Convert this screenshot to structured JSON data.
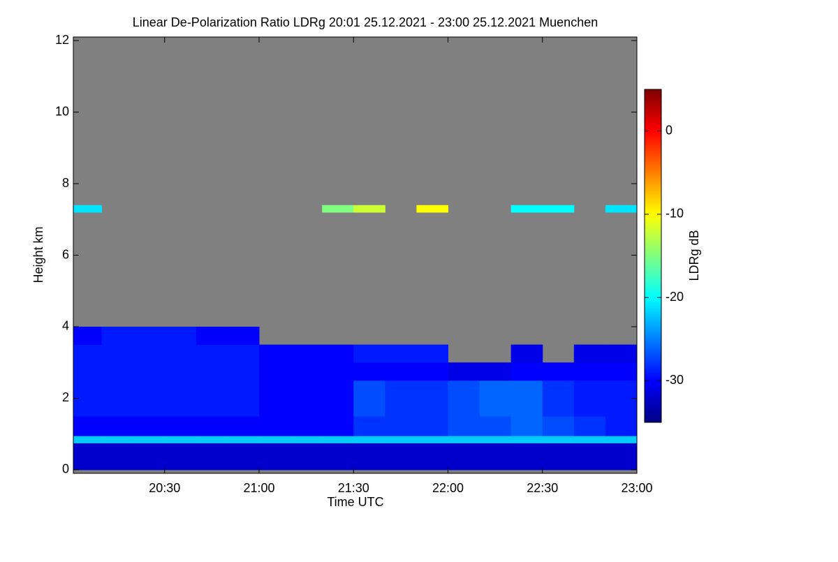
{
  "chart_data": {
    "type": "heatmap",
    "title": "Linear De-Polarization Ratio LDRg   20:01 25.12.2021 - 23:00 25.12.2021 Muenchen",
    "xlabel": "Time UTC",
    "ylabel": "Height km",
    "colorbar_label": "LDRg dB",
    "colormap": "jet",
    "nan_color": "#808080",
    "x_edges": [
      "20:01",
      "20:10",
      "20:20",
      "20:30",
      "20:40",
      "20:50",
      "21:00",
      "21:10",
      "21:20",
      "21:30",
      "21:40",
      "21:50",
      "22:00",
      "22:10",
      "22:20",
      "22:30",
      "22:40",
      "22:50",
      "23:00"
    ],
    "y_edges": [
      0,
      0.75,
      0.95,
      1.5,
      2.5,
      3.0,
      3.5,
      4.0,
      7.2,
      7.4,
      12
    ],
    "z": [
      [
        -32,
        -32,
        -32,
        -32,
        -32,
        -32,
        -32,
        -32,
        -32,
        -32,
        -32,
        -32,
        -32,
        -32,
        -32,
        -32,
        -32,
        -32
      ],
      [
        -22,
        -22,
        -22,
        -22,
        -22,
        -22,
        -22,
        -22,
        -22,
        -22,
        -22,
        -22,
        -22,
        -22,
        -22,
        -22,
        -22,
        -22
      ],
      [
        -30,
        -30,
        -30,
        -30,
        -30,
        -30,
        -30,
        -30,
        -30,
        -28,
        -28,
        -28,
        -27,
        -27,
        -26,
        -27,
        -28,
        -29
      ],
      [
        -29,
        -29,
        -29,
        -29,
        -29,
        -29,
        -30,
        -30,
        -30,
        -27,
        -28,
        -28,
        -27,
        -26,
        -26,
        -28,
        -29,
        -29
      ],
      [
        -29,
        -29,
        -29,
        -29,
        -29,
        -29,
        -30,
        -30,
        -30,
        -30,
        -30,
        -30,
        -31,
        -31,
        -30,
        -30,
        -30,
        -30
      ],
      [
        -29,
        -29,
        -29,
        -29,
        -29,
        -29,
        -30,
        -30,
        -30,
        -29,
        -29,
        -29,
        null,
        null,
        -31,
        null,
        -31,
        -31
      ],
      [
        -30,
        -29,
        -29,
        -29,
        -30,
        -30,
        null,
        null,
        null,
        null,
        null,
        null,
        null,
        null,
        null,
        null,
        null,
        null
      ],
      [
        null,
        null,
        null,
        null,
        null,
        null,
        null,
        null,
        null,
        null,
        null,
        null,
        null,
        null,
        null,
        null,
        null,
        null
      ],
      [
        -21,
        null,
        null,
        null,
        null,
        null,
        null,
        null,
        -15,
        -12,
        null,
        -10,
        null,
        null,
        -20,
        -20,
        null,
        -21
      ],
      [
        null,
        null,
        null,
        null,
        null,
        null,
        null,
        null,
        null,
        null,
        null,
        null,
        null,
        null,
        null,
        null,
        null,
        null
      ]
    ],
    "xlim": [
      "20:01",
      "23:00"
    ],
    "xticks": [
      "20:30",
      "21:00",
      "21:30",
      "22:00",
      "22:30",
      "23:00"
    ],
    "ylim": [
      -0.1,
      12.1
    ],
    "yticks": [
      0,
      2,
      4,
      6,
      8,
      10,
      12
    ],
    "clim": [
      -35,
      5
    ],
    "cticks": [
      -30,
      -20,
      -10,
      0
    ]
  }
}
